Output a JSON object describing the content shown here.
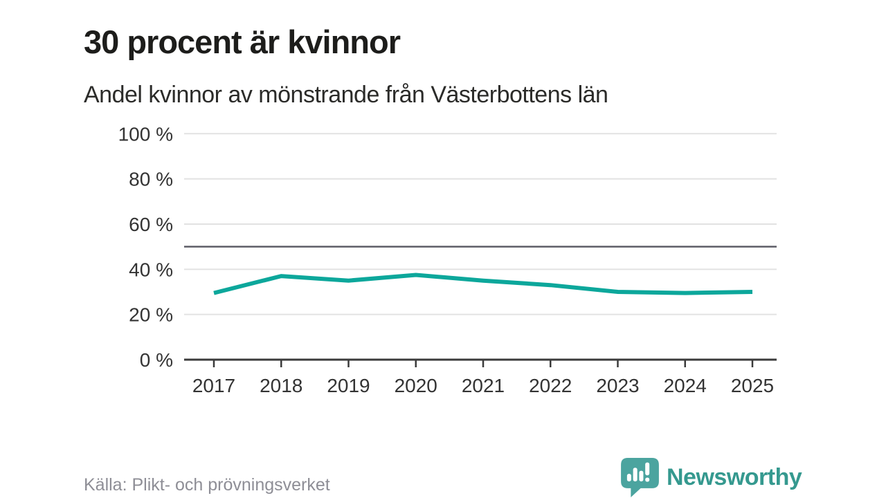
{
  "header": {
    "title": "30 procent är kvinnor",
    "subtitle": "Andel kvinnor av mönstrande från Västerbottens län"
  },
  "footer": {
    "source": "Källa: Plikt- och prövningsverket",
    "brand": "Newsworthy"
  },
  "colors": {
    "line": "#0ca79b",
    "gridline": "#e2e2e2",
    "axis": "#3b3b3b",
    "reference_line": "#5c5c66",
    "axis_text": "#333333",
    "source_text": "#8e8e96",
    "brand_teal": "#35998f",
    "logo_bubble": "#4ba49f"
  },
  "chart_data": {
    "type": "line",
    "title": "30 procent är kvinnor",
    "subtitle": "Andel kvinnor av mönstrande från Västerbottens län",
    "x": [
      "2017",
      "2018",
      "2019",
      "2020",
      "2021",
      "2022",
      "2023",
      "2024",
      "2025"
    ],
    "series": [
      {
        "name": "Andel kvinnor av mönstrande",
        "values": [
          29.5,
          37,
          35,
          37.5,
          35,
          33,
          30,
          29.5,
          30
        ]
      }
    ],
    "xlabel": "",
    "ylabel": "",
    "ylim": [
      0,
      100
    ],
    "yticks": [
      0,
      20,
      40,
      60,
      80,
      100
    ],
    "ytick_suffix": " %",
    "reference_line": 50,
    "grid": true,
    "legend": "none"
  }
}
